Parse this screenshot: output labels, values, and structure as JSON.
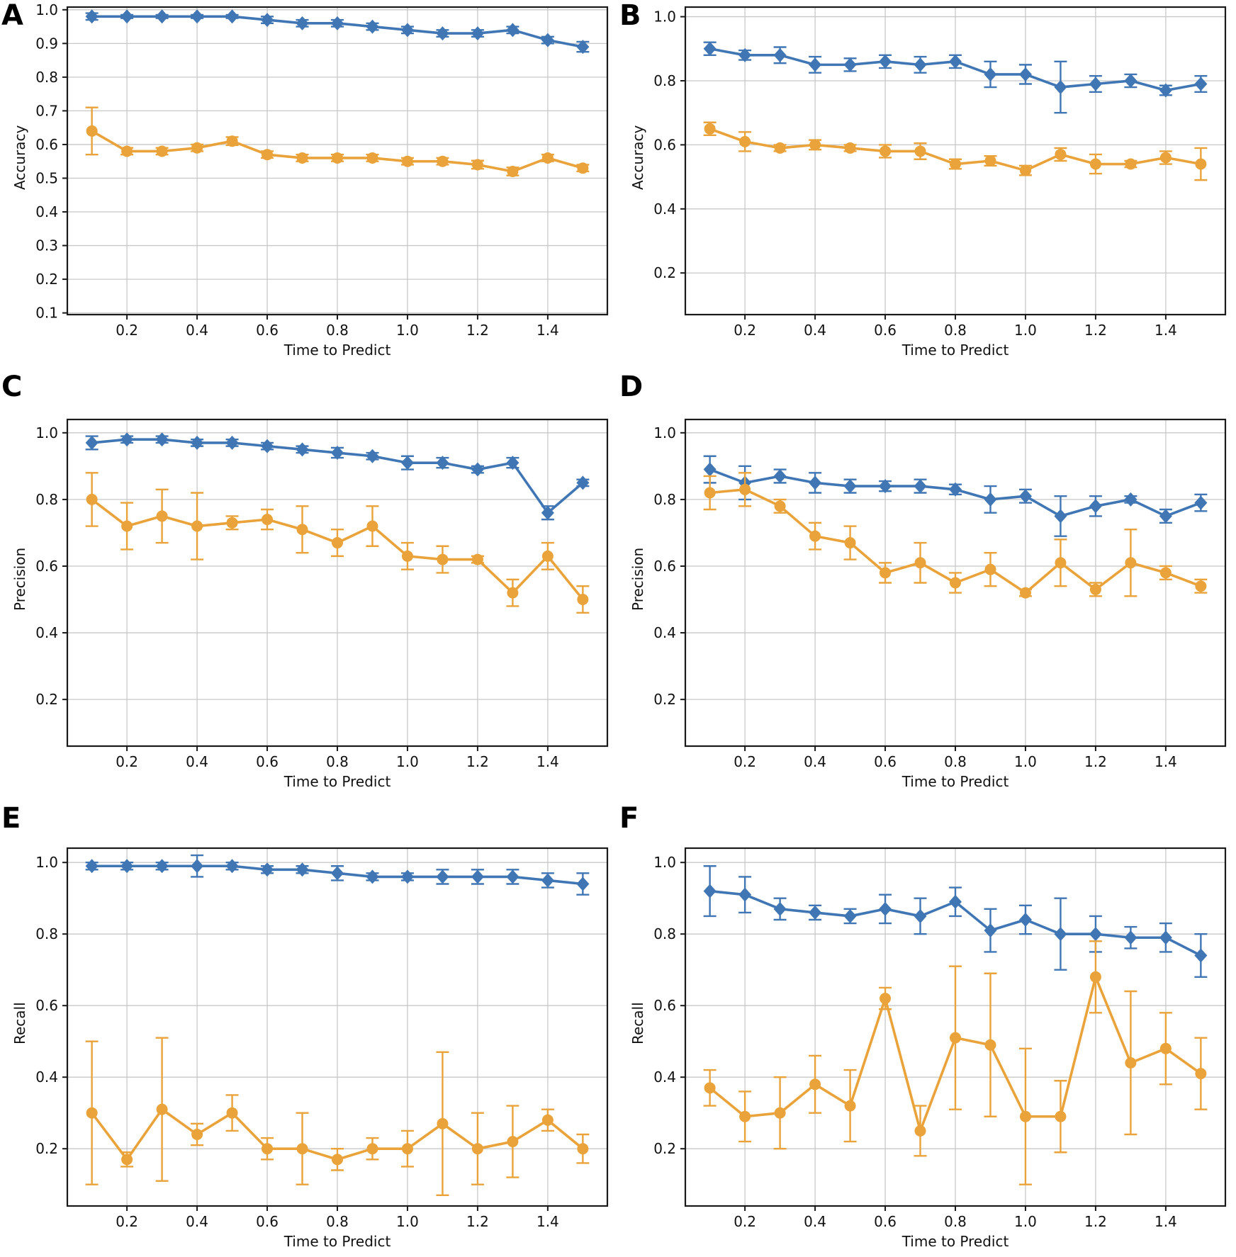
{
  "palette": {
    "blue": "#4076B4",
    "orange": "#E9A33A",
    "grid": "#C8C8C8",
    "axis": "#1A1A1A",
    "text": "#111111",
    "background": "#FFFFFF"
  },
  "chart_data": [
    {
      "letter": "A",
      "type": "line",
      "ylabel": "Accuracy",
      "xlabel": "Time to Predict",
      "x": [
        0.1,
        0.2,
        0.3,
        0.4,
        0.5,
        0.6,
        0.7,
        0.8,
        0.9,
        1.0,
        1.1,
        1.2,
        1.3,
        1.4,
        1.5
      ],
      "xticks": [
        0.2,
        0.4,
        0.6,
        0.8,
        1.0,
        1.2,
        1.4
      ],
      "xtick_labels": [
        "0.2",
        "0.4",
        "0.6",
        "0.8",
        "1.0",
        "1.2",
        "1.4"
      ],
      "yticks": [
        0.1,
        0.2,
        0.3,
        0.4,
        0.5,
        0.6,
        0.7,
        0.8,
        0.9,
        1.0
      ],
      "ytick_labels": [
        "0.1",
        "0.2",
        "0.3",
        "0.4",
        "0.5",
        "0.6",
        "0.7",
        "0.8",
        "0.9",
        "1.0"
      ],
      "xlim": [
        0.03,
        1.57
      ],
      "ylim": [
        0.095,
        1.008
      ],
      "grid": true,
      "series": [
        {
          "name": "blue-diamond",
          "marker": "diamond",
          "color": "#4076B4",
          "values": [
            0.98,
            0.98,
            0.98,
            0.98,
            0.98,
            0.97,
            0.96,
            0.96,
            0.95,
            0.94,
            0.93,
            0.93,
            0.94,
            0.91,
            0.89
          ],
          "errors": [
            0.01,
            0.005,
            0.005,
            0.005,
            0.005,
            0.01,
            0.01,
            0.01,
            0.01,
            0.01,
            0.01,
            0.01,
            0.01,
            0.01,
            0.015
          ]
        },
        {
          "name": "orange-circle",
          "marker": "circle",
          "color": "#E9A33A",
          "values": [
            0.64,
            0.58,
            0.58,
            0.59,
            0.61,
            0.57,
            0.56,
            0.56,
            0.56,
            0.55,
            0.55,
            0.54,
            0.52,
            0.56,
            0.53
          ],
          "errors": [
            0.07,
            0.01,
            0.01,
            0.01,
            0.012,
            0.01,
            0.01,
            0.01,
            0.01,
            0.01,
            0.01,
            0.012,
            0.012,
            0.01,
            0.01
          ]
        }
      ]
    },
    {
      "letter": "B",
      "type": "line",
      "ylabel": "Accuracy",
      "xlabel": "Time to Predict",
      "x": [
        0.1,
        0.2,
        0.3,
        0.4,
        0.5,
        0.6,
        0.7,
        0.8,
        0.9,
        1.0,
        1.1,
        1.2,
        1.3,
        1.4,
        1.5
      ],
      "xticks": [
        0.2,
        0.4,
        0.6,
        0.8,
        1.0,
        1.2,
        1.4
      ],
      "xtick_labels": [
        "0.2",
        "0.4",
        "0.6",
        "0.8",
        "1.0",
        "1.2",
        "1.4"
      ],
      "yticks": [
        0.2,
        0.4,
        0.6,
        0.8,
        1.0
      ],
      "ytick_labels": [
        "0.2",
        "0.4",
        "0.6",
        "0.8",
        "1.0"
      ],
      "xlim": [
        0.03,
        1.57
      ],
      "ylim": [
        0.07,
        1.03
      ],
      "grid": true,
      "series": [
        {
          "name": "blue-diamond",
          "marker": "diamond",
          "color": "#4076B4",
          "values": [
            0.9,
            0.88,
            0.88,
            0.85,
            0.85,
            0.86,
            0.85,
            0.86,
            0.82,
            0.82,
            0.78,
            0.79,
            0.8,
            0.77,
            0.79
          ],
          "errors": [
            0.02,
            0.015,
            0.025,
            0.025,
            0.02,
            0.02,
            0.025,
            0.02,
            0.04,
            0.03,
            0.08,
            0.025,
            0.02,
            0.015,
            0.025
          ]
        },
        {
          "name": "orange-circle",
          "marker": "circle",
          "color": "#E9A33A",
          "values": [
            0.65,
            0.61,
            0.59,
            0.6,
            0.59,
            0.58,
            0.58,
            0.54,
            0.55,
            0.52,
            0.57,
            0.54,
            0.54,
            0.56,
            0.54
          ],
          "errors": [
            0.02,
            0.03,
            0.01,
            0.015,
            0.01,
            0.02,
            0.025,
            0.015,
            0.015,
            0.015,
            0.02,
            0.03,
            0.01,
            0.02,
            0.05
          ]
        }
      ]
    },
    {
      "letter": "C",
      "type": "line",
      "ylabel": "Precision",
      "xlabel": "Time to Predict",
      "x": [
        0.1,
        0.2,
        0.3,
        0.4,
        0.5,
        0.6,
        0.7,
        0.8,
        0.9,
        1.0,
        1.1,
        1.2,
        1.3,
        1.4,
        1.5
      ],
      "xticks": [
        0.2,
        0.4,
        0.6,
        0.8,
        1.0,
        1.2,
        1.4
      ],
      "xtick_labels": [
        "0.2",
        "0.4",
        "0.6",
        "0.8",
        "1.0",
        "1.2",
        "1.4"
      ],
      "yticks": [
        0.2,
        0.4,
        0.6,
        0.8,
        1.0
      ],
      "ytick_labels": [
        "0.2",
        "0.4",
        "0.6",
        "0.8",
        "1.0"
      ],
      "xlim": [
        0.03,
        1.57
      ],
      "ylim": [
        0.06,
        1.04
      ],
      "grid": true,
      "series": [
        {
          "name": "blue-diamond",
          "marker": "diamond",
          "color": "#4076B4",
          "values": [
            0.97,
            0.98,
            0.98,
            0.97,
            0.97,
            0.96,
            0.95,
            0.94,
            0.93,
            0.91,
            0.91,
            0.89,
            0.91,
            0.76,
            0.85
          ],
          "errors": [
            0.02,
            0.01,
            0.01,
            0.01,
            0.01,
            0.01,
            0.01,
            0.015,
            0.01,
            0.02,
            0.015,
            0.01,
            0.015,
            0.02,
            0.01
          ]
        },
        {
          "name": "orange-circle",
          "marker": "circle",
          "color": "#E9A33A",
          "values": [
            0.8,
            0.72,
            0.75,
            0.72,
            0.73,
            0.74,
            0.71,
            0.67,
            0.72,
            0.63,
            0.62,
            0.62,
            0.52,
            0.63,
            0.5
          ],
          "errors": [
            0.08,
            0.07,
            0.08,
            0.1,
            0.02,
            0.03,
            0.07,
            0.04,
            0.06,
            0.04,
            0.04,
            0.01,
            0.04,
            0.04,
            0.04
          ]
        }
      ]
    },
    {
      "letter": "D",
      "type": "line",
      "ylabel": "Precision",
      "xlabel": "Time to Predict",
      "x": [
        0.1,
        0.2,
        0.3,
        0.4,
        0.5,
        0.6,
        0.7,
        0.8,
        0.9,
        1.0,
        1.1,
        1.2,
        1.3,
        1.4,
        1.5
      ],
      "xticks": [
        0.2,
        0.4,
        0.6,
        0.8,
        1.0,
        1.2,
        1.4
      ],
      "xtick_labels": [
        "0.2",
        "0.4",
        "0.6",
        "0.8",
        "1.0",
        "1.2",
        "1.4"
      ],
      "yticks": [
        0.2,
        0.4,
        0.6,
        0.8,
        1.0
      ],
      "ytick_labels": [
        "0.2",
        "0.4",
        "0.6",
        "0.8",
        "1.0"
      ],
      "xlim": [
        0.03,
        1.57
      ],
      "ylim": [
        0.06,
        1.04
      ],
      "grid": true,
      "series": [
        {
          "name": "blue-diamond",
          "marker": "diamond",
          "color": "#4076B4",
          "values": [
            0.89,
            0.85,
            0.87,
            0.85,
            0.84,
            0.84,
            0.84,
            0.83,
            0.8,
            0.81,
            0.75,
            0.78,
            0.8,
            0.75,
            0.79
          ],
          "errors": [
            0.04,
            0.05,
            0.02,
            0.03,
            0.02,
            0.015,
            0.02,
            0.015,
            0.04,
            0.02,
            0.06,
            0.03,
            0.01,
            0.02,
            0.025
          ]
        },
        {
          "name": "orange-circle",
          "marker": "circle",
          "color": "#E9A33A",
          "values": [
            0.82,
            0.83,
            0.78,
            0.69,
            0.67,
            0.58,
            0.61,
            0.55,
            0.59,
            0.52,
            0.61,
            0.53,
            0.61,
            0.58,
            0.54
          ],
          "errors": [
            0.05,
            0.05,
            0.02,
            0.04,
            0.05,
            0.03,
            0.06,
            0.03,
            0.05,
            0.01,
            0.07,
            0.02,
            0.1,
            0.02,
            0.02
          ]
        }
      ]
    },
    {
      "letter": "E",
      "type": "line",
      "ylabel": "Recall",
      "xlabel": "Time to Predict",
      "x": [
        0.1,
        0.2,
        0.3,
        0.4,
        0.5,
        0.6,
        0.7,
        0.8,
        0.9,
        1.0,
        1.1,
        1.2,
        1.3,
        1.4,
        1.5
      ],
      "xticks": [
        0.2,
        0.4,
        0.6,
        0.8,
        1.0,
        1.2,
        1.4
      ],
      "xtick_labels": [
        "0.2",
        "0.4",
        "0.6",
        "0.8",
        "1.0",
        "1.2",
        "1.4"
      ],
      "yticks": [
        0.2,
        0.4,
        0.6,
        0.8,
        1.0
      ],
      "ytick_labels": [
        "0.2",
        "0.4",
        "0.6",
        "0.8",
        "1.0"
      ],
      "xlim": [
        0.03,
        1.57
      ],
      "ylim": [
        0.04,
        1.04
      ],
      "grid": true,
      "series": [
        {
          "name": "blue-diamond",
          "marker": "diamond",
          "color": "#4076B4",
          "values": [
            0.99,
            0.99,
            0.99,
            0.99,
            0.99,
            0.98,
            0.98,
            0.97,
            0.96,
            0.96,
            0.96,
            0.96,
            0.96,
            0.95,
            0.94
          ],
          "errors": [
            0.01,
            0.01,
            0.01,
            0.03,
            0.01,
            0.01,
            0.01,
            0.02,
            0.01,
            0.01,
            0.02,
            0.02,
            0.02,
            0.02,
            0.03
          ]
        },
        {
          "name": "orange-circle",
          "marker": "circle",
          "color": "#E9A33A",
          "values": [
            0.3,
            0.17,
            0.31,
            0.24,
            0.3,
            0.2,
            0.2,
            0.17,
            0.2,
            0.2,
            0.27,
            0.2,
            0.22,
            0.28,
            0.2
          ],
          "errors": [
            0.2,
            0.02,
            0.2,
            0.03,
            0.05,
            0.03,
            0.1,
            0.03,
            0.03,
            0.05,
            0.2,
            0.1,
            0.1,
            0.03,
            0.04
          ]
        }
      ]
    },
    {
      "letter": "F",
      "type": "line",
      "ylabel": "Recall",
      "xlabel": "Time to Predict",
      "x": [
        0.1,
        0.2,
        0.3,
        0.4,
        0.5,
        0.6,
        0.7,
        0.8,
        0.9,
        1.0,
        1.1,
        1.2,
        1.3,
        1.4,
        1.5
      ],
      "xticks": [
        0.2,
        0.4,
        0.6,
        0.8,
        1.0,
        1.2,
        1.4
      ],
      "xtick_labels": [
        "0.2",
        "0.4",
        "0.6",
        "0.8",
        "1.0",
        "1.2",
        "1.4"
      ],
      "yticks": [
        0.2,
        0.4,
        0.6,
        0.8,
        1.0
      ],
      "ytick_labels": [
        "0.2",
        "0.4",
        "0.6",
        "0.8",
        "1.0"
      ],
      "xlim": [
        0.03,
        1.57
      ],
      "ylim": [
        0.04,
        1.04
      ],
      "grid": true,
      "series": [
        {
          "name": "blue-diamond",
          "marker": "diamond",
          "color": "#4076B4",
          "values": [
            0.92,
            0.91,
            0.87,
            0.86,
            0.85,
            0.87,
            0.85,
            0.89,
            0.81,
            0.84,
            0.8,
            0.8,
            0.79,
            0.79,
            0.74
          ],
          "errors": [
            0.07,
            0.05,
            0.03,
            0.02,
            0.02,
            0.04,
            0.05,
            0.04,
            0.06,
            0.04,
            0.1,
            0.05,
            0.03,
            0.04,
            0.06
          ]
        },
        {
          "name": "orange-circle",
          "marker": "circle",
          "color": "#E9A33A",
          "values": [
            0.37,
            0.29,
            0.3,
            0.38,
            0.32,
            0.62,
            0.25,
            0.51,
            0.49,
            0.29,
            0.29,
            0.68,
            0.44,
            0.48,
            0.41
          ],
          "errors": [
            0.05,
            0.07,
            0.1,
            0.08,
            0.1,
            0.03,
            0.07,
            0.2,
            0.2,
            0.19,
            0.1,
            0.1,
            0.2,
            0.1,
            0.1
          ]
        }
      ]
    }
  ]
}
